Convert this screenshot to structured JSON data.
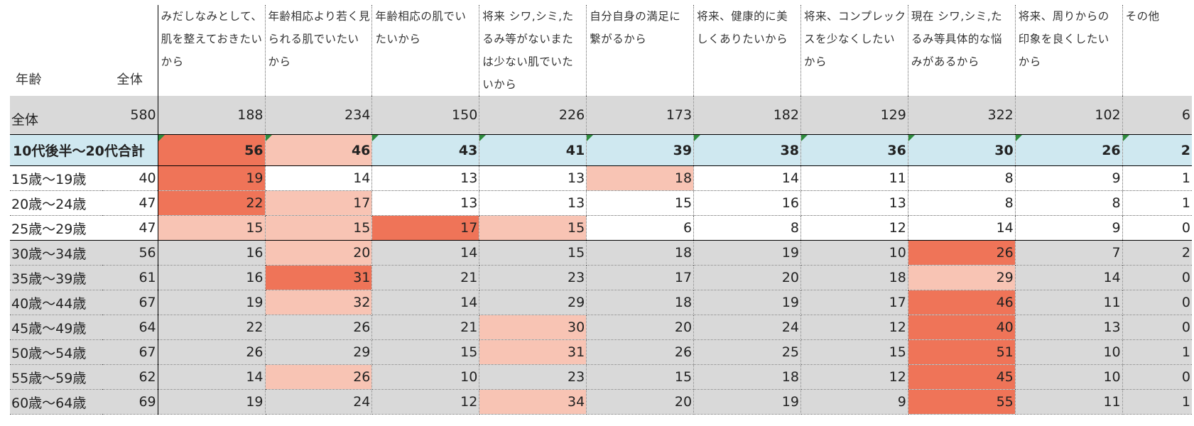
{
  "header": {
    "age_label": "年齢",
    "total_label": "全体",
    "questions": [
      "みだしなみとして、肌を整えておきたいから",
      "年齢相応より若く見られる肌でいたいから",
      "年齢相応の肌でいたいから",
      "将来 シワ,シミ,たるみ等がないまたは少ない肌でいたいから",
      "自分自身の満足に繋がるから",
      "将来、健康的に美しくありたいから",
      "将来、コンプレックスを少なくしたいから",
      "現在 シワ,シミ,たるみ等具体的な悩みがあるから",
      "将来、周りからの印象を良くしたいから",
      "その他"
    ]
  },
  "rows": [
    {
      "label": "全体",
      "total": "580",
      "values": [
        "188",
        "234",
        "150",
        "226",
        "173",
        "182",
        "129",
        "322",
        "102",
        "6"
      ],
      "highlight": [
        "",
        "",
        "",
        "",
        "",
        "",
        "",
        "",
        "",
        ""
      ],
      "kind": "all"
    },
    {
      "label": "10代後半～20代合計",
      "total": "",
      "values": [
        "56",
        "46",
        "43",
        "41",
        "39",
        "38",
        "36",
        "30",
        "26",
        "2"
      ],
      "highlight": [
        "hi",
        "mid",
        "",
        "",
        "",
        "",
        "",
        "",
        "",
        ""
      ],
      "kind": "sum"
    },
    {
      "label": "15歳～19歳",
      "total": "40",
      "values": [
        "19",
        "14",
        "13",
        "13",
        "18",
        "14",
        "11",
        "8",
        "9",
        "1"
      ],
      "highlight": [
        "hi",
        "",
        "",
        "",
        "mid",
        "",
        "",
        "",
        "",
        ""
      ],
      "kind": "young"
    },
    {
      "label": "20歳～24歳",
      "total": "47",
      "values": [
        "22",
        "17",
        "13",
        "13",
        "15",
        "16",
        "13",
        "8",
        "8",
        "1"
      ],
      "highlight": [
        "hi",
        "mid",
        "",
        "",
        "",
        "",
        "",
        "",
        "",
        ""
      ],
      "kind": "young"
    },
    {
      "label": "25歳～29歳",
      "total": "47",
      "values": [
        "15",
        "15",
        "17",
        "15",
        "6",
        "8",
        "12",
        "14",
        "9",
        "0"
      ],
      "highlight": [
        "mid",
        "mid",
        "hi",
        "mid",
        "",
        "",
        "",
        "",
        "",
        ""
      ],
      "kind": "young"
    },
    {
      "label": "30歳～34歳",
      "total": "56",
      "values": [
        "16",
        "20",
        "14",
        "15",
        "18",
        "19",
        "10",
        "26",
        "7",
        "2"
      ],
      "highlight": [
        "",
        "mid",
        "",
        "",
        "",
        "",
        "",
        "hi",
        "",
        ""
      ],
      "kind": "old"
    },
    {
      "label": "35歳～39歳",
      "total": "61",
      "values": [
        "16",
        "31",
        "21",
        "23",
        "17",
        "20",
        "18",
        "29",
        "14",
        "0"
      ],
      "highlight": [
        "",
        "hi",
        "",
        "",
        "",
        "",
        "",
        "mid",
        "",
        ""
      ],
      "kind": "old"
    },
    {
      "label": "40歳～44歳",
      "total": "67",
      "values": [
        "19",
        "32",
        "14",
        "29",
        "18",
        "19",
        "17",
        "46",
        "11",
        "0"
      ],
      "highlight": [
        "",
        "mid",
        "",
        "",
        "",
        "",
        "",
        "hi",
        "",
        ""
      ],
      "kind": "old"
    },
    {
      "label": "45歳～49歳",
      "total": "64",
      "values": [
        "22",
        "26",
        "21",
        "30",
        "20",
        "24",
        "12",
        "40",
        "13",
        "0"
      ],
      "highlight": [
        "",
        "",
        "",
        "mid",
        "",
        "",
        "",
        "hi",
        "",
        ""
      ],
      "kind": "old"
    },
    {
      "label": "50歳～54歳",
      "total": "67",
      "values": [
        "26",
        "29",
        "15",
        "31",
        "26",
        "25",
        "15",
        "51",
        "10",
        "1"
      ],
      "highlight": [
        "",
        "",
        "",
        "mid",
        "",
        "",
        "",
        "hi",
        "",
        ""
      ],
      "kind": "old"
    },
    {
      "label": "55歳～59歳",
      "total": "62",
      "values": [
        "14",
        "26",
        "10",
        "23",
        "15",
        "18",
        "12",
        "45",
        "10",
        "0"
      ],
      "highlight": [
        "",
        "mid",
        "",
        "",
        "",
        "",
        "",
        "hi",
        "",
        ""
      ],
      "kind": "old"
    },
    {
      "label": "60歳～64歳",
      "total": "69",
      "values": [
        "19",
        "24",
        "12",
        "34",
        "20",
        "19",
        "9",
        "55",
        "11",
        "1"
      ],
      "highlight": [
        "",
        "",
        "",
        "mid",
        "",
        "",
        "",
        "hi",
        "",
        ""
      ],
      "kind": "old"
    }
  ],
  "colors": {
    "high": "#ef7458",
    "medium": "#f8c4b4",
    "summary_row": "#cfe8f0",
    "gray_row": "#d9d9d9"
  }
}
